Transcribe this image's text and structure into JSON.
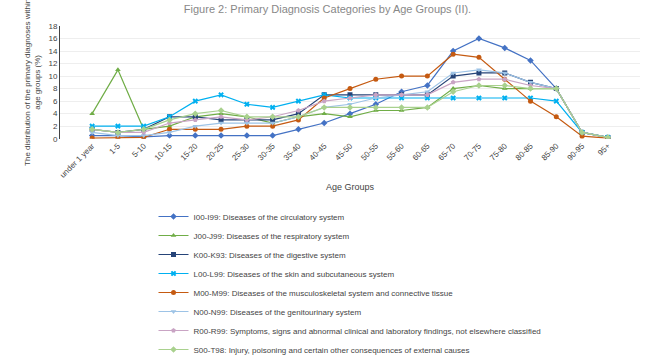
{
  "chart_data": {
    "type": "line",
    "title": "Figure 2: Primary Diagnosis Categories by Age Groups (II).",
    "x_label": "Age Groups",
    "y_label": "The distribution of the primary diagnoses within\nage groups (%)",
    "categories": [
      "under 1 year",
      "1-5",
      "5-10",
      "10-15",
      "15-20",
      "20-25",
      "25-30",
      "30-35",
      "35-40",
      "40-45",
      "45-50",
      "50-55",
      "55-60",
      "60-65",
      "65-70",
      "70-75",
      "75-80",
      "80-85",
      "85-90",
      "90-95",
      "95+"
    ],
    "series": [
      {
        "name": "I00-I99: Diseases of the circulatory system",
        "color": "#4472C4",
        "marker": "diamond",
        "values": [
          0.5,
          0.5,
          0.3,
          0.5,
          0.5,
          0.5,
          0.5,
          0.5,
          1.5,
          2.5,
          4.0,
          5.5,
          7.5,
          8.5,
          14.0,
          16.0,
          14.5,
          12.5,
          8.0,
          1.0,
          0.2
        ]
      },
      {
        "name": "J00-J99: Diseases of the respiratory system",
        "color": "#70AD47",
        "marker": "triangle-up",
        "values": [
          4.0,
          11.0,
          1.5,
          2.0,
          3.5,
          4.0,
          3.5,
          2.5,
          3.5,
          4.0,
          3.5,
          4.5,
          4.5,
          5.0,
          8.0,
          8.5,
          8.0,
          8.0,
          8.0,
          1.0,
          0.2
        ]
      },
      {
        "name": "K00-K93: Diseases of the digestive system",
        "color": "#264478",
        "marker": "square",
        "values": [
          1.5,
          1.0,
          1.5,
          3.5,
          3.5,
          3.0,
          3.0,
          3.0,
          4.0,
          7.0,
          7.0,
          7.0,
          7.0,
          7.0,
          10.0,
          10.5,
          10.5,
          9.0,
          8.0,
          1.0,
          0.2
        ]
      },
      {
        "name": "L00-L99: Diseases of the skin and subcutaneous system",
        "color": "#00B0F0",
        "marker": "x",
        "values": [
          2.0,
          2.0,
          2.0,
          3.5,
          6.0,
          7.0,
          5.5,
          5.0,
          6.0,
          7.0,
          6.5,
          6.5,
          6.5,
          6.5,
          6.5,
          6.5,
          6.5,
          6.5,
          6.0,
          1.0,
          0.2
        ]
      },
      {
        "name": "M00-M99: Diseases of the musculoskeletal system and connective tissue",
        "color": "#C55A11",
        "marker": "circle",
        "values": [
          0.1,
          0.1,
          0.2,
          1.5,
          1.5,
          1.5,
          2.0,
          2.0,
          3.0,
          6.5,
          8.0,
          9.5,
          10.0,
          10.0,
          13.5,
          13.0,
          9.5,
          6.0,
          3.5,
          0.4,
          0.1
        ]
      },
      {
        "name": "N00-N99: Diseases of the genitourinary system",
        "color": "#9DC3E6",
        "marker": "triangle-down",
        "values": [
          1.0,
          0.5,
          0.5,
          1.0,
          2.0,
          2.5,
          2.5,
          2.5,
          3.5,
          5.0,
          5.5,
          6.5,
          7.0,
          7.5,
          10.5,
          11.0,
          10.5,
          9.0,
          8.0,
          1.0,
          0.2
        ]
      },
      {
        "name": "R00-R99: Symptoms, signs and abnormal clinical and laboratory findings, not elsewhere classified",
        "color": "#C9A4C4",
        "marker": "pentagon",
        "values": [
          1.5,
          1.0,
          1.0,
          2.5,
          3.0,
          3.5,
          3.0,
          3.5,
          4.5,
          6.0,
          6.5,
          7.0,
          7.0,
          7.0,
          9.0,
          9.5,
          9.5,
          8.5,
          8.0,
          1.0,
          0.2
        ]
      },
      {
        "name": "S00-T98: Injury, poisoning and certain other consequences of external causes",
        "color": "#A9D18E",
        "marker": "diamond",
        "values": [
          1.5,
          1.0,
          1.5,
          3.0,
          4.0,
          4.5,
          3.5,
          3.5,
          3.5,
          5.0,
          5.0,
          5.0,
          5.0,
          5.0,
          7.5,
          8.5,
          8.5,
          8.0,
          8.0,
          1.0,
          0.2
        ]
      }
    ],
    "ylim": [
      0,
      18
    ],
    "yticks": [
      0,
      2,
      4,
      6,
      8,
      10,
      12,
      14,
      16,
      18
    ],
    "grid": true,
    "legend": "bottom"
  }
}
